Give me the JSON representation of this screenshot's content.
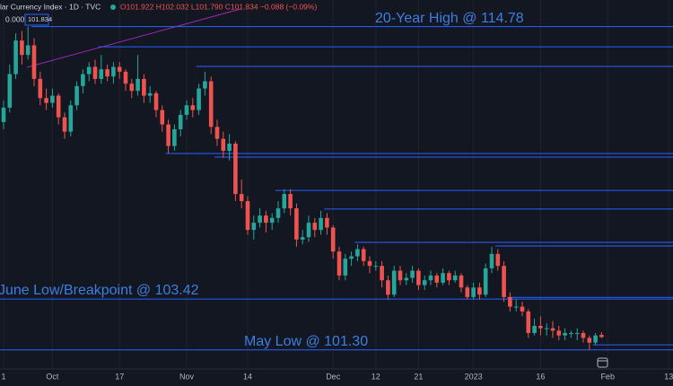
{
  "chart_data": {
    "type": "candlestick",
    "header": {
      "symbol": "lar Currency Index · 1D · TVC",
      "ohlc_label": "O101.922  H102.032  L101.790  C101.834  −0.088 (−0.09%)",
      "box_left": "0.000",
      "box_price": "101.834"
    },
    "annotations": [
      "20-Year High @ 114.78",
      "June Low/Breakpoint @ 103.42",
      "May Low @ 101.30"
    ],
    "up_color": "#26a69a",
    "down_color": "#ef5350",
    "level_color": "#2962ff",
    "ylim": [
      100.54,
      115.89
    ],
    "categories": [
      "1",
      null,
      null,
      null,
      null,
      null,
      null,
      null,
      "Oct",
      null,
      null,
      null,
      null,
      null,
      null,
      null,
      null,
      null,
      null,
      "17",
      null,
      null,
      null,
      null,
      null,
      null,
      null,
      null,
      null,
      null,
      "Nov",
      null,
      null,
      null,
      null,
      null,
      null,
      null,
      null,
      null,
      "14",
      null,
      null,
      null,
      null,
      null,
      null,
      null,
      null,
      null,
      null,
      null,
      null,
      null,
      "Dec",
      null,
      null,
      null,
      null,
      null,
      null,
      "12",
      null,
      null,
      null,
      null,
      null,
      null,
      "21",
      null,
      null,
      null,
      null,
      null,
      null,
      null,
      null,
      "2023",
      null,
      null,
      null,
      null,
      null,
      null,
      null,
      null,
      null,
      null,
      "16",
      null,
      null,
      null,
      null,
      null,
      null,
      null,
      null,
      null,
      null,
      "Feb",
      null,
      null,
      null,
      null,
      null,
      null,
      null,
      null,
      null,
      "13"
    ],
    "open": [
      110.8,
      111.4,
      112.8,
      114.2,
      113.6,
      114.0,
      112.6,
      111.8,
      111.6,
      111.9,
      111.0,
      110.4,
      111.5,
      112.3,
      112.8,
      113.1,
      112.6,
      113.0,
      112.7,
      113.1,
      112.9,
      112.4,
      112.1,
      112.6,
      111.9,
      112.0,
      111.3,
      110.7,
      109.8,
      110.5,
      111.1,
      111.5,
      111.3,
      112.2,
      112.5,
      110.6,
      110.1,
      109.6,
      109.9,
      107.8,
      107.5,
      106.3,
      106.6,
      106.9,
      106.6,
      106.8,
      107.2,
      107.8,
      107.2,
      105.9,
      106.0,
      106.6,
      106.3,
      106.8,
      106.4,
      105.4,
      104.4,
      105.1,
      105.2,
      105.5,
      105.0,
      104.8,
      104.8,
      104.2,
      103.6,
      104.6,
      104.2,
      104.3,
      104.6,
      104.0,
      104.2,
      104.4,
      104.1,
      104.5,
      104.2,
      104.4,
      103.9,
      103.5,
      103.9,
      103.6,
      104.7,
      105.3,
      104.8,
      103.5,
      103.1,
      103.1,
      102.9,
      102.0,
      102.3,
      102.2,
      102.2,
      102.1,
      101.9,
      102.0,
      102.0,
      102.0,
      101.8,
      101.6,
      101.922,
      null,
      null,
      null,
      null,
      null,
      null,
      null,
      null,
      null,
      null,
      null
    ],
    "high": [
      111.7,
      113.2,
      114.5,
      114.6,
      114.78,
      114.3,
      112.9,
      112.2,
      112.2,
      112.0,
      111.2,
      111.7,
      112.5,
      113.0,
      113.3,
      113.4,
      113.6,
      113.2,
      113.3,
      113.3,
      113.0,
      112.6,
      113.6,
      112.8,
      112.3,
      112.1,
      111.5,
      110.9,
      110.7,
      111.3,
      111.7,
      111.8,
      112.4,
      112.9,
      112.7,
      110.9,
      110.4,
      110.3,
      110.0,
      108.4,
      107.7,
      106.9,
      107.2,
      107.1,
      107.0,
      107.5,
      108.0,
      108.0,
      107.4,
      106.3,
      106.9,
      106.8,
      107.1,
      107.0,
      106.5,
      105.6,
      105.3,
      105.4,
      105.7,
      105.6,
      105.2,
      105.0,
      105.0,
      104.4,
      104.8,
      104.8,
      104.5,
      104.8,
      104.7,
      104.4,
      104.6,
      104.5,
      104.7,
      104.6,
      104.6,
      104.5,
      104.0,
      104.1,
      104.1,
      104.9,
      105.6,
      105.5,
      105.0,
      103.7,
      103.4,
      103.3,
      103.0,
      102.6,
      102.7,
      102.4,
      102.5,
      102.3,
      102.2,
      102.1,
      102.2,
      102.1,
      101.9,
      102.0,
      102.032,
      null,
      null,
      null,
      null,
      null,
      null,
      null,
      null,
      null,
      null,
      null
    ],
    "low": [
      110.5,
      111.2,
      112.6,
      113.2,
      113.4,
      112.3,
      111.5,
      111.3,
      111.4,
      110.7,
      110.1,
      110.2,
      111.3,
      112.0,
      112.5,
      112.4,
      112.4,
      112.5,
      112.4,
      112.6,
      112.1,
      111.8,
      111.9,
      111.6,
      111.6,
      111.0,
      110.4,
      109.5,
      109.6,
      110.2,
      110.9,
      111.0,
      111.1,
      111.9,
      110.3,
      109.8,
      109.3,
      109.2,
      107.5,
      107.2,
      106.1,
      105.9,
      106.4,
      106.2,
      106.3,
      106.6,
      107.0,
      106.9,
      105.6,
      105.7,
      105.8,
      106.0,
      106.1,
      106.1,
      105.1,
      104.2,
      104.2,
      104.8,
      105.0,
      104.8,
      104.5,
      104.6,
      103.9,
      103.4,
      103.5,
      104.0,
      104.0,
      104.1,
      103.8,
      103.8,
      104.0,
      103.9,
      104.0,
      104.0,
      104.1,
      103.7,
      103.4,
      103.4,
      103.4,
      103.5,
      104.5,
      104.6,
      103.3,
      102.9,
      102.9,
      102.7,
      101.8,
      101.9,
      101.9,
      101.9,
      101.8,
      101.7,
      101.7,
      101.8,
      101.7,
      101.6,
      101.3,
      101.5,
      101.79,
      null,
      null,
      null,
      null,
      null,
      null,
      null,
      null,
      null,
      null,
      null
    ],
    "close": [
      111.4,
      112.8,
      114.2,
      113.6,
      114.0,
      112.6,
      111.8,
      111.6,
      111.9,
      111.0,
      110.4,
      111.5,
      112.3,
      112.8,
      113.1,
      112.6,
      113.0,
      112.7,
      113.1,
      112.9,
      112.4,
      112.1,
      112.6,
      111.9,
      112.0,
      111.3,
      110.7,
      109.8,
      110.5,
      111.1,
      111.5,
      111.3,
      112.2,
      112.5,
      110.6,
      110.1,
      109.6,
      109.9,
      107.8,
      107.5,
      106.3,
      106.6,
      106.9,
      106.6,
      106.8,
      107.2,
      107.8,
      107.2,
      105.9,
      106.0,
      106.6,
      106.3,
      106.8,
      106.4,
      105.4,
      104.4,
      105.1,
      105.2,
      105.5,
      105.0,
      104.8,
      104.8,
      104.2,
      103.6,
      104.6,
      104.2,
      104.3,
      104.6,
      104.0,
      104.2,
      104.4,
      104.1,
      104.5,
      104.2,
      104.4,
      103.9,
      103.5,
      103.9,
      103.6,
      104.7,
      105.3,
      104.8,
      103.5,
      103.1,
      103.1,
      102.9,
      102.0,
      102.3,
      102.2,
      102.2,
      102.1,
      101.9,
      102.0,
      102.0,
      102.0,
      101.8,
      101.6,
      101.9,
      101.834,
      null,
      null,
      null,
      null,
      null,
      null,
      null,
      null,
      null,
      null,
      null
    ],
    "levels": [
      {
        "value": 114.78,
        "from": 5
      },
      {
        "value": 113.94,
        "from": 16
      },
      {
        "value": 113.12,
        "from": 32
      },
      {
        "value": 109.49,
        "from": 27
      },
      {
        "value": 109.34,
        "from": 35
      },
      {
        "value": 107.95,
        "from": 45
      },
      {
        "value": 107.17,
        "from": 53
      },
      {
        "value": 105.78,
        "from": 58
      },
      {
        "value": 105.63,
        "from": 81
      },
      {
        "value": 103.49,
        "from": 83
      },
      {
        "value": 103.42,
        "from": 0
      },
      {
        "value": 101.51,
        "from": 97
      },
      {
        "value": 101.3,
        "from": 0
      }
    ]
  }
}
